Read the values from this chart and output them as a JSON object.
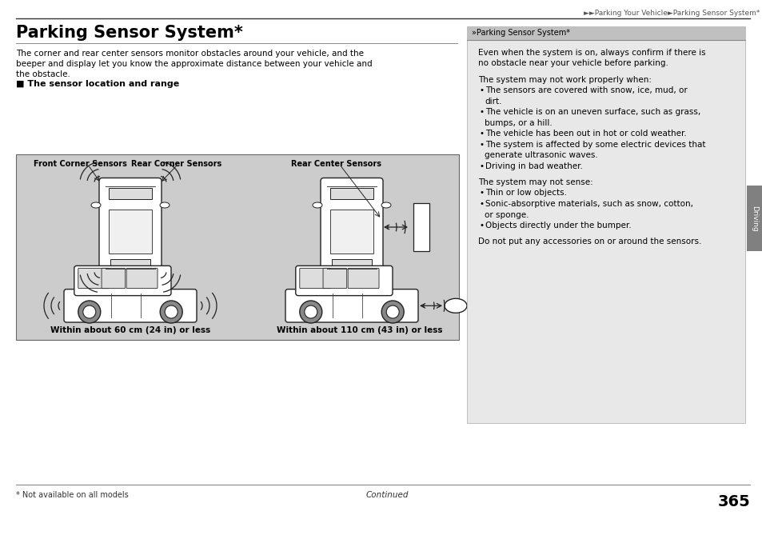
{
  "page_title": "Parking Sensor System*",
  "breadcrumb": "►►Parking Your Vehicle►Parking Sensor System*",
  "page_number": "365",
  "main_line1": "The corner and rear center sensors monitor obstacles around your vehicle, and the",
  "main_line2": "beeper and display let you know the approximate distance between your vehicle and",
  "main_line3": "the obstacle.",
  "section_header": "■ The sensor location and range",
  "label_front": "Front Corner Sensors",
  "label_rear_corner": "Rear Corner Sensors",
  "label_rear_center": "Rear Center Sensors",
  "caption_left": "Within about 60 cm (24 in) or less",
  "caption_right": "Within about 110 cm (43 in) or less",
  "sidebar_header": "»Parking Sensor System*",
  "sidebar_line1": "Even when the system is on, always confirm if there is",
  "sidebar_line2": "no obstacle near your vehicle before parking.",
  "sidebar_para2": "The system may not work properly when:",
  "sidebar_b1a": "The sensors are covered with snow, ice, mud, or",
  "sidebar_b1b": "dirt.",
  "sidebar_b2a": "The vehicle is on an uneven surface, such as grass,",
  "sidebar_b2b": "bumps, or a hill.",
  "sidebar_b3": "The vehicle has been out in hot or cold weather.",
  "sidebar_b4a": "The system is affected by some electric devices that",
  "sidebar_b4b": "generate ultrasonic waves.",
  "sidebar_b5": "Driving in bad weather.",
  "sidebar_para3": "The system may not sense:",
  "sidebar_c1": "Thin or low objects.",
  "sidebar_c2a": "Sonic-absorptive materials, such as snow, cotton,",
  "sidebar_c2b": "or sponge.",
  "sidebar_c3": "Objects directly under the bumper.",
  "sidebar_note": "Do not put any accessories on or around the sensors.",
  "driving_tab": "Driving",
  "footer_note": "* Not available on all models",
  "footer_continued": "Continued",
  "bg_color": "#ffffff",
  "diagram_bg": "#cccccc",
  "sidebar_bg": "#e8e8e8",
  "sidebar_hdr_bg": "#c0c0c0",
  "tab_color": "#808080"
}
